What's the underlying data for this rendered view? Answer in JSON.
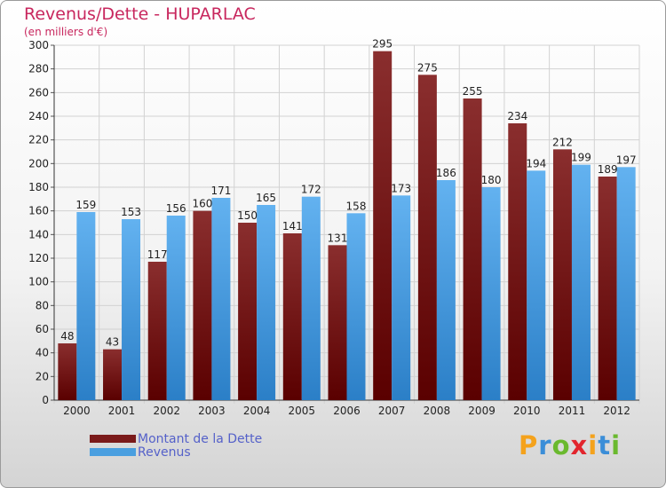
{
  "chart_data": {
    "type": "bar",
    "title": "Revenus/Dette - HUPARLAC",
    "subtitle": "(en milliers d'€)",
    "categories": [
      "2000",
      "2001",
      "2002",
      "2003",
      "2004",
      "2005",
      "2006",
      "2007",
      "2008",
      "2009",
      "2010",
      "2011",
      "2012"
    ],
    "series": [
      {
        "name": "Montant de la Dette",
        "color": "#7a1a1a",
        "values": [
          48,
          43,
          117,
          160,
          150,
          141,
          131,
          295,
          275,
          255,
          234,
          212,
          189
        ]
      },
      {
        "name": "Revenus",
        "color": "#4a9fe0",
        "values": [
          159,
          153,
          156,
          171,
          165,
          172,
          158,
          173,
          186,
          180,
          194,
          199,
          197
        ]
      }
    ],
    "ylim": [
      0,
      300
    ],
    "yticks": [
      0,
      20,
      40,
      60,
      80,
      100,
      120,
      140,
      160,
      180,
      200,
      220,
      240,
      260,
      280,
      300
    ],
    "grid": true,
    "legend": "bottom-left"
  },
  "logo": {
    "letters": [
      "P",
      "r",
      "o",
      "x",
      "i",
      "t",
      "i"
    ],
    "colors": [
      "#f4a21c",
      "#3b8ed8",
      "#6ab92e",
      "#e2252d",
      "#f4a21c",
      "#3b8ed8",
      "#6ab92e"
    ]
  }
}
